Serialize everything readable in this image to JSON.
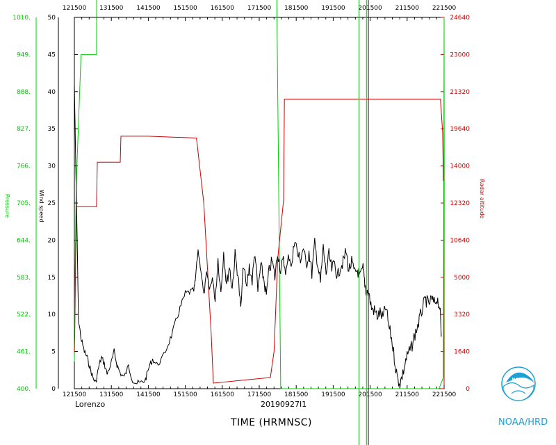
{
  "chart_data": {
    "type": "line",
    "x_ticks": [
      "121500",
      "131500",
      "141500",
      "151500",
      "161500",
      "171500",
      "181500",
      "191500",
      "201500",
      "211500",
      "221500"
    ],
    "xlim": [
      121500,
      221500
    ],
    "footer": {
      "storm": "Lorenzo",
      "flight": "20190927I1",
      "xlabel": "TIME (HRMNSC)",
      "agency": "NOAA/HRD"
    },
    "axes": {
      "pressure": {
        "label": "Pressure",
        "ticks": [
          "1010.",
          "949.",
          "888.",
          "827.",
          "766.",
          "705.",
          "644.",
          "583.",
          "522.",
          "461.",
          "400."
        ],
        "color": "#00cc00"
      },
      "wind": {
        "label": "Wind speed",
        "ticks": [
          "50",
          "45",
          "40",
          "35",
          "30",
          "25",
          "20",
          "15",
          "10",
          "5",
          "0"
        ],
        "ylim": [
          0,
          50
        ],
        "color": "#000000"
      },
      "altitude": {
        "label": "Radar altitude",
        "ticks": [
          "24640",
          "23000",
          "21320",
          "19640",
          "14000",
          "12320",
          "10640",
          "5000",
          "3320",
          "1640",
          "0"
        ],
        "color": "#cc0000"
      }
    },
    "series": [
      {
        "key": "pressure",
        "color": "#00cc00",
        "tick_fraction": [
          [
            0,
            0.73
          ],
          [
            0.3,
            2.1
          ],
          [
            2.5,
            5.5
          ],
          [
            9,
            9.0
          ],
          [
            30,
            9.0
          ],
          [
            30.5,
            13.8
          ],
          [
            52,
            13.8
          ],
          [
            53,
            17.0
          ],
          [
            130,
            17.0
          ],
          [
            131,
            22.2
          ],
          [
            209,
            21.7
          ],
          [
            232,
            22.0
          ],
          [
            240,
            21.9
          ],
          [
            245,
            22.3
          ],
          [
            248,
            22.3
          ],
          [
            250,
            21.9
          ],
          [
            256,
            21.9
          ],
          [
            257,
            22.3
          ],
          [
            268,
            22.3
          ],
          [
            271,
            16.0
          ],
          [
            275,
            8.0
          ],
          [
            279,
            0.0
          ],
          [
            305,
            0.0
          ],
          [
            493,
            0.0
          ],
          [
            499,
            0.3
          ],
          [
            500,
            10.0
          ]
        ]
      },
      {
        "key": "altitude",
        "color": "#cc0000",
        "tick_fraction": [
          [
            0,
            0.98
          ],
          [
            0.6,
            1.5
          ],
          [
            1.5,
            3.1
          ],
          [
            3,
            4.9
          ],
          [
            10,
            4.9
          ],
          [
            30,
            4.9
          ],
          [
            31,
            6.1
          ],
          [
            62,
            6.1
          ],
          [
            63,
            6.8
          ],
          [
            100,
            6.8
          ],
          [
            165,
            6.75
          ],
          [
            166,
            6.6
          ],
          [
            175,
            5.0
          ],
          [
            185,
            1.5
          ],
          [
            188,
            0.15
          ],
          [
            265,
            0.3
          ],
          [
            270,
            1.0
          ],
          [
            275,
            3.5
          ],
          [
            283,
            5.1
          ],
          [
            284,
            7.8
          ],
          [
            356,
            7.8
          ],
          [
            420,
            7.8
          ],
          [
            425,
            7.8
          ],
          [
            445,
            7.8
          ],
          [
            495,
            7.8
          ],
          [
            498,
            6.9
          ],
          [
            499,
            5.6
          ]
        ]
      },
      {
        "key": "wind",
        "color": "#000000",
        "values": [
          [
            0,
            41
          ],
          [
            1,
            30
          ],
          [
            3,
            9
          ],
          [
            5,
            6.5
          ],
          [
            7,
            5
          ],
          [
            9,
            4.2
          ],
          [
            11,
            2.8
          ],
          [
            13,
            1.5
          ],
          [
            15,
            0.8
          ],
          [
            17,
            2.8
          ],
          [
            19,
            4.2
          ],
          [
            21,
            3.4
          ],
          [
            23,
            2.0
          ],
          [
            26,
            3.5
          ],
          [
            28,
            5.0
          ],
          [
            30,
            3.2
          ],
          [
            32,
            2.2
          ],
          [
            35,
            1.5
          ],
          [
            38,
            3.0
          ],
          [
            41,
            1.2
          ],
          [
            44,
            0.7
          ],
          [
            47,
            0.8
          ],
          [
            50,
            1.2
          ],
          [
            52,
            2.6
          ],
          [
            55,
            4.0
          ],
          [
            58,
            3.2
          ],
          [
            62,
            4.1
          ],
          [
            66,
            6.0
          ],
          [
            69,
            7.5
          ],
          [
            72,
            9.5
          ],
          [
            75,
            11.2
          ],
          [
            78,
            12.8
          ],
          [
            81,
            13.0
          ],
          [
            84,
            13.2
          ],
          [
            85,
            14.5
          ],
          [
            87,
            18.7
          ],
          [
            89,
            16.0
          ],
          [
            91,
            12.5
          ],
          [
            93,
            15.5
          ],
          [
            95,
            13.3
          ],
          [
            97,
            15.0
          ],
          [
            99,
            12.0
          ],
          [
            101,
            17.5
          ],
          [
            103,
            13.0
          ],
          [
            105,
            18.5
          ],
          [
            107,
            14.0
          ],
          [
            109,
            16.5
          ],
          [
            111,
            13.5
          ],
          [
            113,
            18.0
          ],
          [
            115,
            15.5
          ],
          [
            117,
            10.5
          ],
          [
            119,
            17.0
          ],
          [
            121,
            13.3
          ],
          [
            123,
            16.5
          ],
          [
            125,
            14.5
          ],
          [
            127,
            18.5
          ],
          [
            129,
            13.0
          ],
          [
            131,
            16.5
          ],
          [
            133,
            15.0
          ],
          [
            135,
            12.5
          ],
          [
            137,
            16.0
          ],
          [
            139,
            17.2
          ],
          [
            141,
            15.0
          ],
          [
            143,
            18.5
          ],
          [
            145,
            16.0
          ],
          [
            147,
            17.2
          ],
          [
            149,
            15.8
          ],
          [
            151,
            18.0
          ],
          [
            153,
            16.5
          ],
          [
            155,
            20.5
          ],
          [
            157,
            18.0
          ],
          [
            159,
            17.5
          ],
          [
            161,
            19.0
          ],
          [
            163,
            16.5
          ],
          [
            165,
            18.5
          ],
          [
            167,
            15.5
          ],
          [
            169,
            19.5
          ],
          [
            171,
            17.0
          ],
          [
            173,
            14.2
          ],
          [
            175,
            19.0
          ],
          [
            177,
            15.5
          ],
          [
            179,
            18.0
          ],
          [
            181,
            16.0
          ],
          [
            183,
            17.0
          ],
          [
            185,
            15.0
          ],
          [
            187,
            16.5
          ],
          [
            189,
            17.0
          ],
          [
            191,
            18.5
          ],
          [
            193,
            16.0
          ],
          [
            195,
            17.0
          ],
          [
            197,
            15.5
          ],
          [
            199,
            16.0
          ],
          [
            201,
            15.0
          ],
          [
            203,
            16.2
          ],
          [
            204,
            14.5
          ],
          [
            205,
            13.3
          ],
          [
            207,
            12.8
          ],
          [
            209,
            10.8
          ],
          [
            211,
            10.5
          ],
          [
            213,
            9.8
          ],
          [
            215,
            10.2
          ],
          [
            217,
            9.5
          ],
          [
            219,
            11.0
          ],
          [
            221,
            8.5
          ],
          [
            223,
            6.8
          ],
          [
            225,
            4.2
          ],
          [
            227,
            1.5
          ],
          [
            229,
            0.8
          ],
          [
            231,
            2.0
          ],
          [
            233,
            3.8
          ],
          [
            235,
            4.8
          ],
          [
            237,
            5.5
          ],
          [
            239,
            7.0
          ],
          [
            241,
            8.2
          ],
          [
            243,
            9.5
          ],
          [
            245,
            11.0
          ],
          [
            247,
            12.0
          ],
          [
            249,
            11.3
          ],
          [
            251,
            12.0
          ],
          [
            253,
            11.5
          ],
          [
            255,
            12.2
          ],
          [
            257,
            11.0
          ],
          [
            258,
            7.0
          ]
        ]
      }
    ],
    "vertical_markers": [
      {
        "x": 198500,
        "color": "#00cc00"
      },
      {
        "x": 200500,
        "color": "#00cc00"
      },
      {
        "x": 201000,
        "color": "#000000"
      }
    ]
  }
}
